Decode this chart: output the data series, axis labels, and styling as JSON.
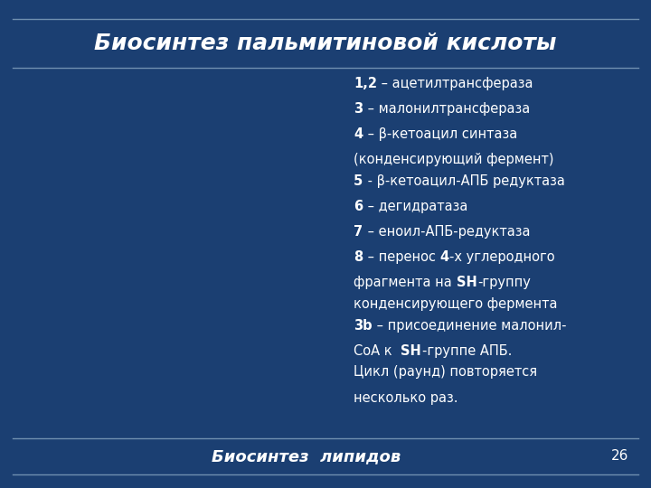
{
  "title": "Биосинтез пальмитиновой кислоты",
  "footer": "Биосинтез  липидов",
  "page_number": "26",
  "bg_color": "#1b3f72",
  "title_color": "#ffffff",
  "footer_color": "#ffffff",
  "separator_color": "#7090b0",
  "title_fontsize": 18,
  "footer_fontsize": 13,
  "text_fontsize": 10.5,
  "text_lines": [
    [
      [
        "1,2",
        true
      ],
      [
        " – ацетилтрансфераза",
        false
      ]
    ],
    [
      [
        "3",
        true
      ],
      [
        " – малонилтрансфераза",
        false
      ]
    ],
    [
      [
        "4",
        true
      ],
      [
        " – β-кетоацил синтаза",
        false
      ]
    ],
    [
      [
        "(конденсирующий фермент)",
        false
      ]
    ],
    [
      [
        "5",
        true
      ],
      [
        " - β-кетоацил-АПБ редуктаза",
        false
      ]
    ],
    [
      [
        "6",
        true
      ],
      [
        " – дегидратаза",
        false
      ]
    ],
    [
      [
        "7",
        true
      ],
      [
        " – еноил-АПБ-редуктаза",
        false
      ]
    ],
    [
      [
        "8",
        true
      ],
      [
        " – перенос ",
        false
      ],
      [
        "4",
        true
      ],
      [
        "-х углеродного",
        false
      ]
    ],
    [
      [
        "фрагмента на ",
        false
      ],
      [
        "SH",
        true
      ],
      [
        "-группу",
        false
      ]
    ],
    [
      [
        "конденсирующего фермента",
        false
      ]
    ],
    [
      [
        "3b",
        true
      ],
      [
        " – присоединение малонил-",
        false
      ]
    ],
    [
      [
        "СоА к  ",
        false
      ],
      [
        "SH",
        true
      ],
      [
        "-группе АПБ.",
        false
      ]
    ],
    [
      [
        "Цикл (раунд) повторяется",
        false
      ]
    ],
    [
      [
        "несколько раз.",
        false
      ]
    ]
  ]
}
